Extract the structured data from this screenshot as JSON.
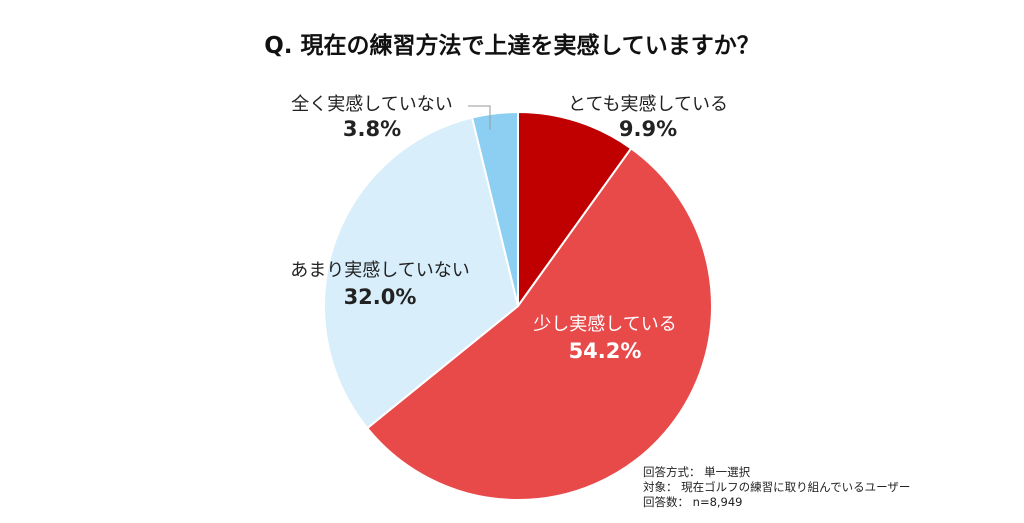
{
  "chart_data": {
    "type": "pie",
    "title": "Q. 現在の練習方法で上達を実感していますか？",
    "start": "top",
    "direction": "clockwise",
    "slices": [
      {
        "label": "とても実感している",
        "value": 9.9,
        "display": "9.9%",
        "color": "#c00000",
        "text_color": "#222222"
      },
      {
        "label": "少し実感している",
        "value": 54.2,
        "display": "54.2%",
        "color": "#e84a4a",
        "text_color": "#ffffff"
      },
      {
        "label": "あまり実感していない",
        "value": 32.0,
        "display": "32.0%",
        "color": "#d8eefa",
        "text_color": "#222222"
      },
      {
        "label": "全く実感していない",
        "value": 3.8,
        "display": "3.8%",
        "color": "#8ccff2",
        "text_color": "#222222"
      }
    ]
  },
  "notes": [
    "回答方式： 単一選択",
    "対象： 現在ゴルフの練習に取り組んでいるユーザー",
    "回答数： n=8,949"
  ]
}
